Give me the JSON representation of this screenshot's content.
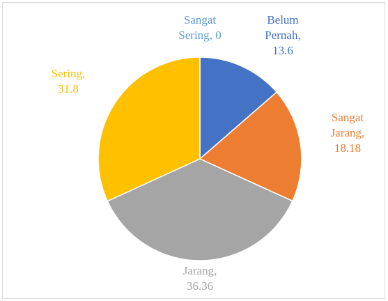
{
  "chart_data": {
    "type": "pie",
    "categories": [
      "Belum Pernah",
      "Sangat Jarang",
      "Jarang",
      "Sering",
      "Sangat Sering"
    ],
    "values": [
      13.6,
      18.18,
      36.36,
      31.8,
      0
    ],
    "colors": [
      "#4472c4",
      "#ed7d31",
      "#a5a5a5",
      "#ffc000",
      "#5b9bd5"
    ]
  }
}
